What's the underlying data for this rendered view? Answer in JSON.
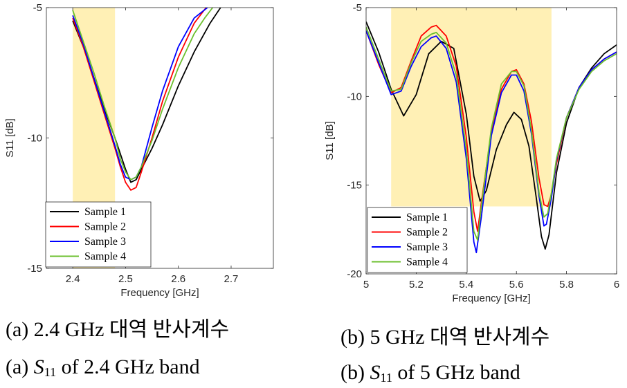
{
  "chart_data": [
    {
      "type": "line",
      "title": "",
      "xlabel": "Frequency [GHz]",
      "ylabel": "S11 [dB]",
      "xlim": [
        2.35,
        2.78
      ],
      "ylim": [
        -15,
        -5
      ],
      "xticks": [
        2.4,
        2.5,
        2.6,
        2.7
      ],
      "xtick_labels": [
        "2.4",
        "2.5",
        "2.6",
        "2.7"
      ],
      "yticks": [
        -15,
        -10,
        -5
      ],
      "ytick_labels": [
        "-15",
        "-10",
        "-5"
      ],
      "highlight_band": {
        "x": [
          2.4,
          2.48
        ],
        "y": [
          -15,
          -5
        ],
        "color": "#FFF0B5"
      },
      "legend_position": "bottom-left",
      "series": [
        {
          "name": "Sample 1",
          "color": "#000000",
          "x": [
            2.4,
            2.42,
            2.44,
            2.46,
            2.48,
            2.49,
            2.5,
            2.51,
            2.52,
            2.53,
            2.55,
            2.57,
            2.6,
            2.63,
            2.66,
            2.68
          ],
          "y": [
            -5.5,
            -6.5,
            -7.7,
            -8.9,
            -10.0,
            -10.6,
            -11.2,
            -11.7,
            -11.6,
            -11.2,
            -10.4,
            -9.5,
            -8.0,
            -6.7,
            -5.6,
            -5.0
          ]
        },
        {
          "name": "Sample 2",
          "color": "#FF0000",
          "x": [
            2.4,
            2.42,
            2.44,
            2.46,
            2.48,
            2.49,
            2.5,
            2.51,
            2.52,
            2.53,
            2.55,
            2.57,
            2.6,
            2.63,
            2.66
          ],
          "y": [
            -5.4,
            -6.5,
            -7.8,
            -9.1,
            -10.4,
            -11.1,
            -11.7,
            -12.0,
            -11.9,
            -11.3,
            -10.0,
            -8.6,
            -6.9,
            -5.6,
            -4.8
          ]
        },
        {
          "name": "Sample 3",
          "color": "#0000FF",
          "x": [
            2.4,
            2.42,
            2.44,
            2.46,
            2.48,
            2.49,
            2.5,
            2.51,
            2.52,
            2.53,
            2.55,
            2.57,
            2.6,
            2.63,
            2.655
          ],
          "y": [
            -5.3,
            -6.4,
            -7.7,
            -9.0,
            -10.3,
            -11.0,
            -11.5,
            -11.6,
            -11.5,
            -11.1,
            -9.6,
            -8.2,
            -6.5,
            -5.4,
            -5.0
          ]
        },
        {
          "name": "Sample 4",
          "color": "#6BBF2D",
          "x": [
            2.4,
            2.42,
            2.44,
            2.46,
            2.48,
            2.49,
            2.5,
            2.51,
            2.52,
            2.53,
            2.55,
            2.57,
            2.6,
            2.63,
            2.65,
            2.665
          ],
          "y": [
            -5.1,
            -6.3,
            -7.5,
            -8.8,
            -10.0,
            -10.8,
            -11.3,
            -11.6,
            -11.5,
            -11.1,
            -10.1,
            -8.9,
            -7.3,
            -6.0,
            -5.4,
            -5.0
          ]
        }
      ]
    },
    {
      "type": "line",
      "title": "",
      "xlabel": "Frequency [GHz]",
      "ylabel": "S11 [dB]",
      "xlim": [
        5,
        6
      ],
      "ylim": [
        -20,
        -5
      ],
      "xticks": [
        5,
        5.2,
        5.4,
        5.6,
        5.8,
        6
      ],
      "xtick_labels": [
        "5",
        "5.2",
        "5.4",
        "5.6",
        "5.8",
        "6"
      ],
      "yticks": [
        -20,
        -15,
        -10,
        -5
      ],
      "ytick_labels": [
        "-20",
        "-15",
        "-10",
        "-5"
      ],
      "highlight_band": {
        "x": [
          5.1,
          5.74
        ],
        "y": [
          -16.2,
          -5
        ],
        "color": "#FFF0B5"
      },
      "legend_position": "bottom-left",
      "series": [
        {
          "name": "Sample 1",
          "color": "#000000",
          "x": [
            5.0,
            5.05,
            5.1,
            5.15,
            5.2,
            5.25,
            5.3,
            5.35,
            5.4,
            5.43,
            5.455,
            5.48,
            5.52,
            5.56,
            5.59,
            5.62,
            5.65,
            5.68,
            5.7,
            5.715,
            5.73,
            5.76,
            5.8,
            5.85,
            5.9,
            5.95,
            6.0
          ],
          "y": [
            -5.8,
            -7.5,
            -9.6,
            -11.1,
            -9.9,
            -7.6,
            -6.9,
            -7.3,
            -11.0,
            -14.5,
            -15.9,
            -15.3,
            -13.0,
            -11.6,
            -10.9,
            -11.3,
            -12.8,
            -15.8,
            -17.9,
            -18.6,
            -17.8,
            -14.3,
            -11.5,
            -9.5,
            -8.4,
            -7.6,
            -7.1
          ]
        },
        {
          "name": "Sample 2",
          "color": "#FF0000",
          "x": [
            5.0,
            5.05,
            5.1,
            5.14,
            5.18,
            5.22,
            5.26,
            5.28,
            5.32,
            5.36,
            5.4,
            5.43,
            5.445,
            5.46,
            5.5,
            5.54,
            5.58,
            5.6,
            5.63,
            5.66,
            5.69,
            5.71,
            5.725,
            5.74,
            5.76,
            5.8,
            5.85,
            5.9,
            5.95,
            6.0
          ],
          "y": [
            -6.3,
            -8.2,
            -9.8,
            -9.5,
            -8.0,
            -6.6,
            -6.1,
            -6.0,
            -6.6,
            -8.3,
            -12.3,
            -16.5,
            -17.6,
            -16.0,
            -12.0,
            -9.6,
            -8.6,
            -8.5,
            -9.3,
            -11.4,
            -14.6,
            -16.1,
            -16.2,
            -15.5,
            -13.8,
            -11.2,
            -9.5,
            -8.5,
            -7.9,
            -7.5
          ]
        },
        {
          "name": "Sample 3",
          "color": "#0000FF",
          "x": [
            5.0,
            5.05,
            5.1,
            5.14,
            5.18,
            5.22,
            5.26,
            5.28,
            5.32,
            5.36,
            5.4,
            5.43,
            5.44,
            5.46,
            5.5,
            5.54,
            5.58,
            5.6,
            5.63,
            5.66,
            5.69,
            5.71,
            5.72,
            5.74,
            5.76,
            5.8,
            5.85,
            5.9,
            5.95,
            6.0
          ],
          "y": [
            -6.3,
            -8.1,
            -9.9,
            -9.7,
            -8.3,
            -7.2,
            -6.7,
            -6.6,
            -7.3,
            -9.2,
            -13.5,
            -18.2,
            -18.8,
            -16.8,
            -12.2,
            -9.8,
            -8.8,
            -8.8,
            -9.7,
            -12.1,
            -15.6,
            -17.3,
            -17.2,
            -15.7,
            -13.6,
            -11.2,
            -9.5,
            -8.5,
            -7.9,
            -7.5
          ]
        },
        {
          "name": "Sample 4",
          "color": "#6BBF2D",
          "x": [
            5.0,
            5.05,
            5.1,
            5.14,
            5.18,
            5.22,
            5.26,
            5.28,
            5.32,
            5.36,
            5.4,
            5.43,
            5.445,
            5.46,
            5.5,
            5.54,
            5.58,
            5.6,
            5.63,
            5.66,
            5.69,
            5.71,
            5.725,
            5.74,
            5.76,
            5.8,
            5.85,
            5.9,
            5.95,
            6.0
          ],
          "y": [
            -6.1,
            -7.9,
            -9.7,
            -9.6,
            -8.1,
            -6.9,
            -6.5,
            -6.4,
            -7.0,
            -8.8,
            -13.0,
            -17.6,
            -18.1,
            -16.2,
            -11.8,
            -9.3,
            -8.6,
            -8.6,
            -9.4,
            -11.9,
            -15.4,
            -16.8,
            -16.6,
            -15.4,
            -13.5,
            -11.2,
            -9.6,
            -8.6,
            -8.0,
            -7.6
          ]
        }
      ]
    }
  ],
  "captions": {
    "left_korean": "(a) 2.4 GHz 대역 반사계수",
    "left_english_prefix": "(a) ",
    "left_english_s": "S",
    "left_english_sub": "11",
    "left_english_rest": " of 2.4 GHz band",
    "right_korean": "(b) 5 GHz 대역 반사계수",
    "right_english_prefix": "(b) ",
    "right_english_s": "S",
    "right_english_sub": "11",
    "right_english_rest": " of 5 GHz band"
  }
}
